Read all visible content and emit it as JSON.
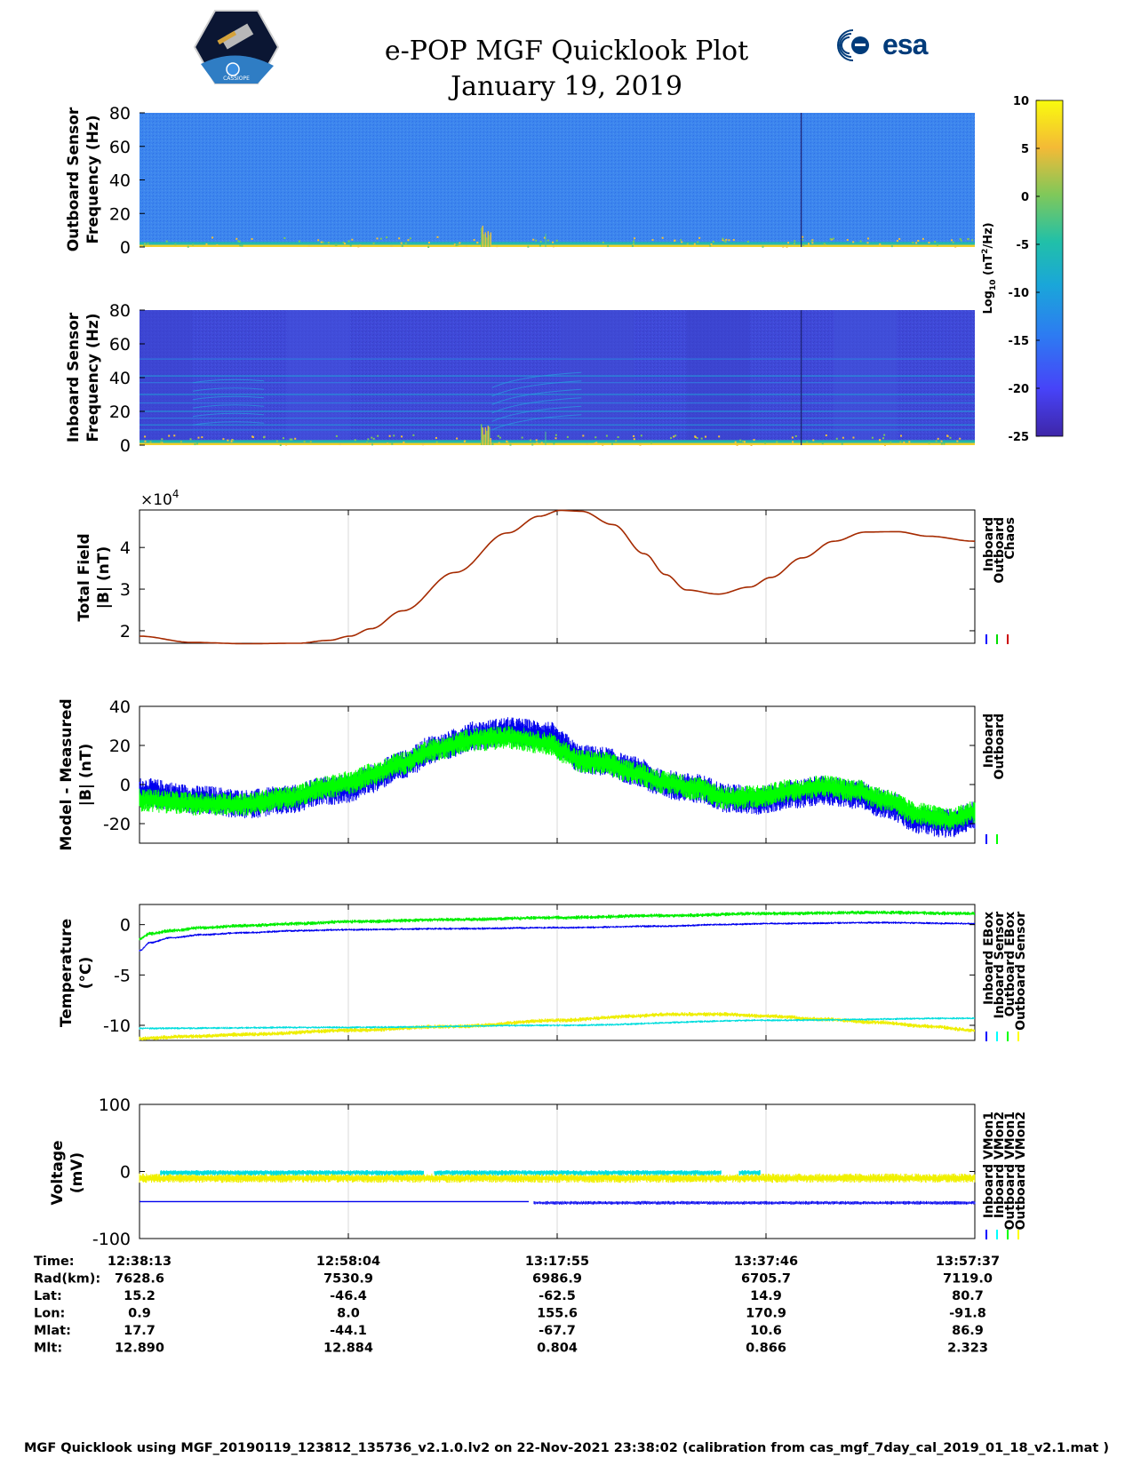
{
  "header": {
    "title": "e-POP MGF Quicklook Plot",
    "date": "January 19, 2019",
    "cassiope_logo_text": "CASSIOPE",
    "esa_logo_text": "esa"
  },
  "footer": {
    "text": "MGF Quicklook using MGF_20190119_123812_135736_v2.1.0.lv2 on 22-Nov-2021 23:38:02 (calibration from cas_mgf_7day_cal_2019_01_18_v2.1.mat )"
  },
  "colorbar": {
    "label": "Log10 (nT2/Hz)",
    "ticks": [
      10,
      5,
      0,
      -5,
      -10,
      -15,
      -20,
      -25
    ],
    "range": [
      -25,
      10
    ],
    "colors": [
      "#3e26a8",
      "#4743f8",
      "#3a77f5",
      "#1ea5d8",
      "#21c1a5",
      "#7ac85c",
      "#e6b92f",
      "#f9fb0e"
    ]
  },
  "chart_data": [
    {
      "type": "heatmap",
      "id": "outboard-spectrogram",
      "ylabel": "Outboard Sensor Frequency (Hz)",
      "ylim": [
        0,
        80
      ],
      "yticks": [
        80,
        60,
        40,
        20,
        0
      ],
      "background_value": -12,
      "features": [
        "bright band near 0-3 Hz",
        "burst near 13:06",
        "dark vertical line near 13:42"
      ]
    },
    {
      "type": "heatmap",
      "id": "inboard-spectrogram",
      "ylabel": "Inboard Sensor Frequency (Hz)",
      "ylim": [
        0,
        80
      ],
      "yticks": [
        80,
        60,
        40,
        20,
        0
      ],
      "background_value": -19,
      "harmonic_lines_hz": [
        2,
        9,
        12,
        16,
        20,
        25,
        30,
        37,
        41,
        51
      ],
      "features": [
        "bright band near 0-3 Hz",
        "burst near 13:06",
        "dark vertical line near 13:42"
      ]
    },
    {
      "type": "line",
      "id": "total-field",
      "ylabel": "Total Field |B| (nT)",
      "multiplier": "×10",
      "multiplier_exp": "4",
      "xlim": [
        0,
        79.4
      ],
      "ylim": [
        1.7,
        4.9
      ],
      "yticks": [
        2,
        3,
        4
      ],
      "legend": [
        "Inboard",
        "Outboard",
        "Chaos"
      ],
      "legend_colors": [
        "#0000ff",
        "#00dd00",
        "#cc0000"
      ],
      "series": [
        {
          "name": "Inboard/Outboard/Chaos",
          "color": "#a52a00",
          "x": [
            0,
            5,
            10,
            15,
            18,
            20,
            22,
            25,
            30,
            35,
            38,
            40,
            42,
            45,
            48,
            50,
            52,
            55,
            58,
            60,
            63,
            66,
            69,
            72,
            75,
            79.4
          ],
          "y": [
            1.87,
            1.72,
            1.69,
            1.7,
            1.77,
            1.87,
            2.05,
            2.48,
            3.4,
            4.35,
            4.75,
            4.89,
            4.87,
            4.55,
            3.85,
            3.35,
            2.98,
            2.88,
            3.05,
            3.28,
            3.75,
            4.15,
            4.37,
            4.38,
            4.27,
            4.15
          ]
        }
      ]
    },
    {
      "type": "line",
      "id": "model-minus-measured",
      "ylabel": "Model - Measured |B| (nT)",
      "xlim": [
        0,
        79.4
      ],
      "ylim": [
        -30,
        40
      ],
      "yticks": [
        40,
        20,
        0,
        -20
      ],
      "legend": [
        "Inboard",
        "Outboard"
      ],
      "legend_colors": [
        "#0000ff",
        "#00ff00"
      ],
      "series": [
        {
          "name": "Inboard",
          "color": "#0000ee",
          "band_width": 10,
          "x": [
            0,
            6,
            10,
            14,
            18,
            20,
            22,
            25,
            28,
            32,
            35,
            39,
            40,
            42,
            44,
            47,
            50,
            53,
            56,
            59,
            62,
            65,
            68,
            71,
            74,
            77,
            79.4
          ],
          "y": [
            -4,
            -8,
            -10,
            -8,
            -3,
            -2,
            3,
            10,
            18,
            25,
            27,
            25,
            20,
            13,
            12,
            7,
            0,
            -2,
            -7,
            -8,
            -5,
            -3,
            -5,
            -10,
            -18,
            -20,
            -16
          ]
        },
        {
          "name": "Outboard",
          "color": "#00ff00",
          "band_width": 10,
          "x": [
            0,
            6,
            10,
            14,
            18,
            20,
            22,
            25,
            28,
            32,
            35,
            39,
            40,
            42,
            44,
            47,
            50,
            53,
            56,
            59,
            62,
            65,
            68,
            71,
            74,
            77,
            79.4
          ],
          "y": [
            -8,
            -10,
            -10,
            -7,
            -1,
            1,
            5,
            11,
            18,
            23,
            24,
            21,
            17,
            12,
            11,
            6,
            1,
            -2,
            -7,
            -6,
            -3,
            -1,
            -3,
            -8,
            -15,
            -18,
            -14
          ]
        }
      ]
    },
    {
      "type": "line",
      "id": "temperature",
      "ylabel": "Temperature (°C)",
      "xlim": [
        0,
        79.4
      ],
      "ylim": [
        -11.5,
        2
      ],
      "yticks": [
        0,
        -5,
        -10
      ],
      "legend": [
        "Inboard EBox",
        "Inboard Sensor",
        "Outboard EBox",
        "Outboard Sensor"
      ],
      "legend_colors": [
        "#0000ff",
        "#00ffff",
        "#00ff00",
        "#ffff00"
      ],
      "series": [
        {
          "name": "Inboard EBox",
          "color": "#0000ee",
          "x": [
            0,
            1,
            3,
            6,
            10,
            15,
            20,
            30,
            40,
            50,
            55,
            60,
            70,
            79.4
          ],
          "y": [
            -2.6,
            -1.8,
            -1.3,
            -1.0,
            -0.8,
            -0.6,
            -0.5,
            -0.4,
            -0.3,
            -0.15,
            0.0,
            0.1,
            0.2,
            0.1
          ]
        },
        {
          "name": "Inboard Sensor",
          "color": "#00dddd",
          "x": [
            0,
            20,
            40,
            60,
            79.4
          ],
          "y": [
            -10.3,
            -10.2,
            -10.0,
            -9.5,
            -9.3
          ]
        },
        {
          "name": "Outboard EBox",
          "color": "#00ee00",
          "x": [
            0,
            1,
            3,
            6,
            10,
            15,
            20,
            30,
            40,
            50,
            60,
            70,
            79.4
          ],
          "y": [
            -1.4,
            -0.9,
            -0.6,
            -0.3,
            -0.1,
            0.1,
            0.3,
            0.5,
            0.7,
            0.9,
            1.1,
            1.2,
            1.1
          ]
        },
        {
          "name": "Outboard Sensor",
          "color": "#eeee00",
          "x": [
            0,
            5,
            10,
            20,
            30,
            40,
            47,
            50,
            55,
            60,
            65,
            70,
            75,
            79.4
          ],
          "y": [
            -11.3,
            -11.1,
            -10.9,
            -10.5,
            -10.1,
            -9.5,
            -9.1,
            -8.9,
            -8.9,
            -9.1,
            -9.4,
            -9.7,
            -10.1,
            -10.5
          ]
        }
      ]
    },
    {
      "type": "line",
      "id": "voltage",
      "ylabel": "Voltage (mV)",
      "xlim": [
        0,
        79.4
      ],
      "ylim": [
        -100,
        100
      ],
      "yticks": [
        100,
        0,
        -100
      ],
      "legend": [
        "Inboard VMon1",
        "Inboard VMon2",
        "Outboard VMon1",
        "Outboard VMon2"
      ],
      "legend_colors": [
        "#0000ff",
        "#00ffff",
        "#00ff00",
        "#ffff00"
      ],
      "series": [
        {
          "name": "Inboard VMon1",
          "color": "#0000ee",
          "x": [
            0,
            37,
            37.5,
            79.4
          ],
          "y": [
            -45,
            -45,
            -47,
            -47
          ]
        },
        {
          "name": "Inboard VMon2",
          "color": "#00dddd",
          "x": [
            2,
            55,
            55,
            59
          ],
          "y": [
            -2,
            -2,
            -2,
            -2
          ],
          "band_width": 8
        },
        {
          "name": "Outboard VMon1",
          "color": "#00ee00",
          "x": [
            0,
            79.4
          ],
          "y": [
            -8,
            -8
          ]
        },
        {
          "name": "Outboard VMon2",
          "color": "#f0f000",
          "x": [
            0,
            79.4
          ],
          "y": [
            -10,
            -10
          ],
          "band_width": 14
        }
      ]
    }
  ],
  "time_axis": {
    "xlim": [
      0,
      79.4
    ],
    "tick_positions_min": [
      0,
      19.85,
      39.7,
      59.55,
      79.4
    ],
    "rows": [
      {
        "label": "Time:",
        "values": [
          "12:38:13",
          "12:58:04",
          "13:17:55",
          "13:37:46",
          "13:57:37"
        ]
      },
      {
        "label": "Rad(km):",
        "values": [
          "7628.6",
          "7530.9",
          "6986.9",
          "6705.7",
          "7119.0"
        ]
      },
      {
        "label": "Lat:",
        "values": [
          "15.2",
          "-46.4",
          "-62.5",
          "14.9",
          "80.7"
        ]
      },
      {
        "label": "Lon:",
        "values": [
          "0.9",
          "8.0",
          "155.6",
          "170.9",
          "-91.8"
        ]
      },
      {
        "label": "Mlat:",
        "values": [
          "17.7",
          "-44.1",
          "-67.7",
          "10.6",
          "86.9"
        ]
      },
      {
        "label": "Mlt:",
        "values": [
          "12.890",
          "12.884",
          "0.804",
          "0.866",
          "2.323"
        ]
      }
    ]
  }
}
